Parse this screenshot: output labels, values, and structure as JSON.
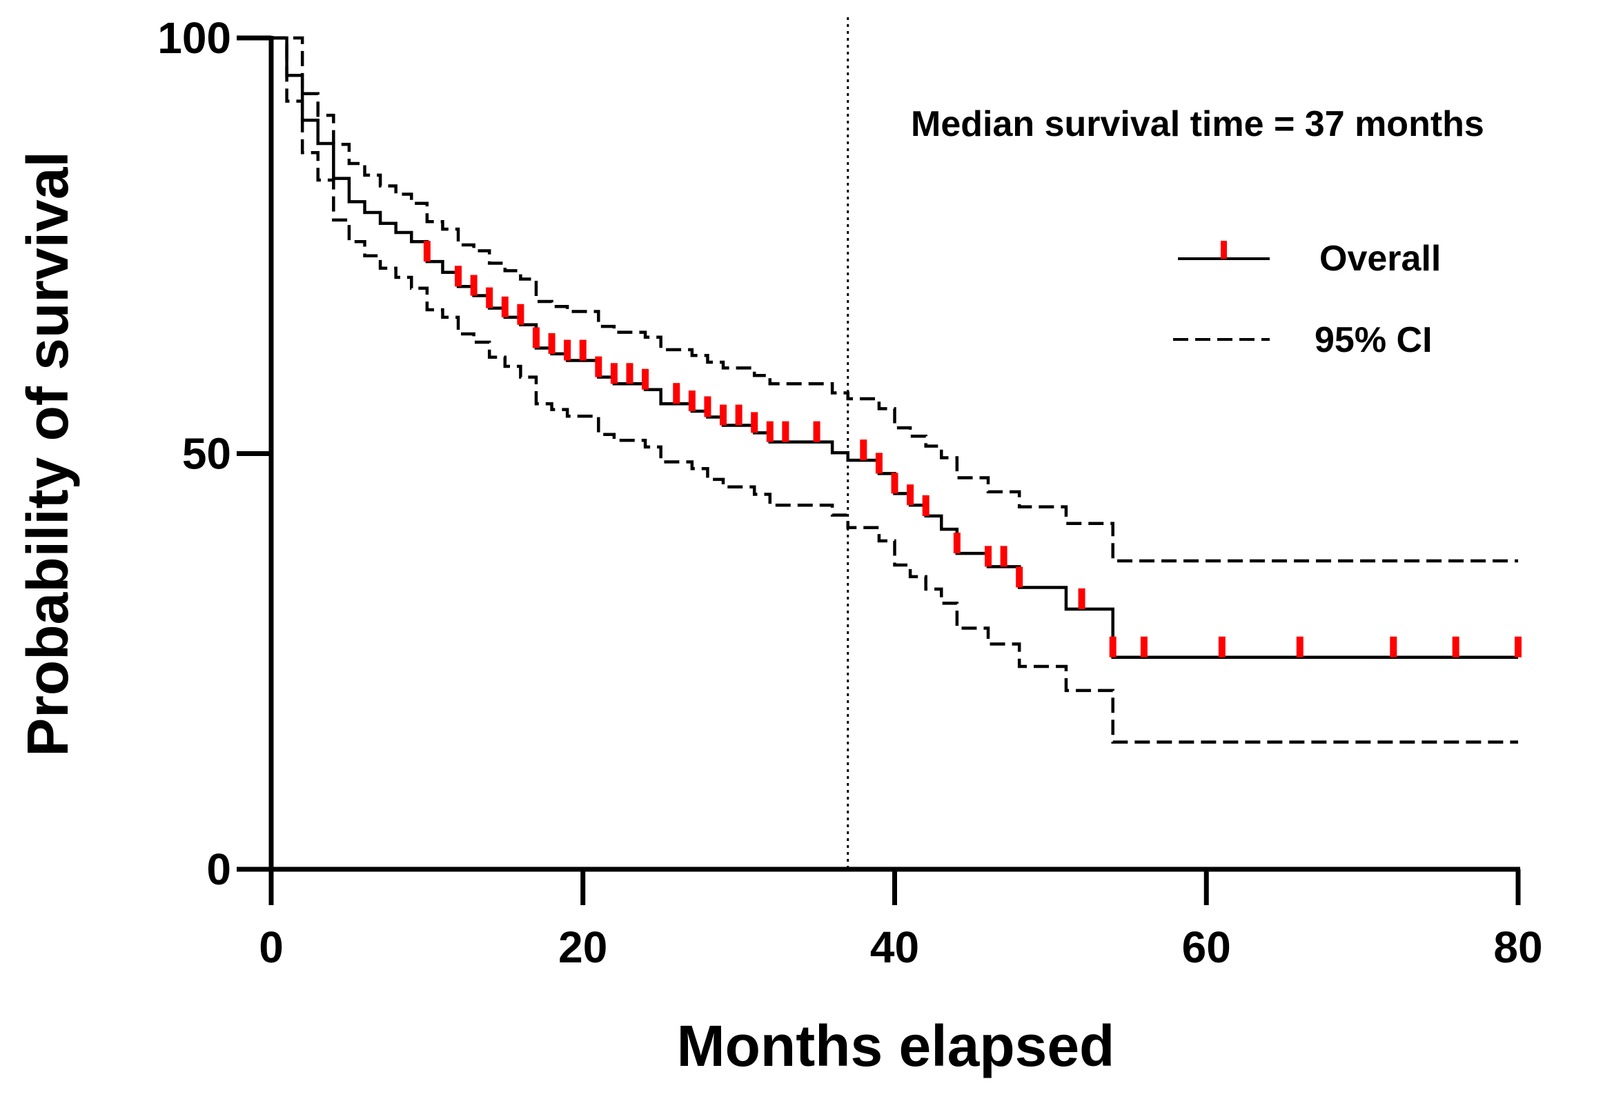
{
  "chart_data": {
    "type": "line",
    "subtype": "kaplan-meier",
    "title": "",
    "xlabel": "Months elapsed",
    "ylabel": "Probability of survival",
    "xlim": [
      0,
      80
    ],
    "ylim": [
      0,
      100
    ],
    "xticks": [
      "0",
      "20",
      "40",
      "60",
      "80"
    ],
    "yticks": [
      "0",
      "50",
      "100"
    ],
    "grid": false,
    "annotation": "Median survival time = 37 months",
    "median_line_x": 37,
    "legend": {
      "placement": "top-right",
      "entries": [
        "Overall",
        "95% CI"
      ]
    },
    "colors": {
      "overall": "#000000",
      "censor": "#ff0000",
      "ci": "#000000"
    },
    "series": [
      {
        "name": "Overall",
        "style": "solid",
        "steps": [
          [
            0,
            100
          ],
          [
            1,
            95.5
          ],
          [
            2,
            90.1
          ],
          [
            3,
            87.3
          ],
          [
            4,
            83.1
          ],
          [
            5,
            80.3
          ],
          [
            6,
            79.0
          ],
          [
            7,
            77.7
          ],
          [
            8,
            76.6
          ],
          [
            9,
            75.5
          ],
          [
            10,
            73.1
          ],
          [
            11,
            71.8
          ],
          [
            12,
            70.1
          ],
          [
            13,
            69.0
          ],
          [
            14,
            67.5
          ],
          [
            15,
            66.4
          ],
          [
            16,
            65.5
          ],
          [
            17,
            62.7
          ],
          [
            18,
            62.0
          ],
          [
            19,
            61.2
          ],
          [
            21,
            59.2
          ],
          [
            22,
            58.4
          ],
          [
            24,
            57.7
          ],
          [
            25,
            56.0
          ],
          [
            27,
            55.1
          ],
          [
            28,
            54.4
          ],
          [
            29,
            53.4
          ],
          [
            31,
            52.5
          ],
          [
            32,
            51.4
          ],
          [
            36,
            50.1
          ],
          [
            37,
            49.2
          ],
          [
            39,
            47.6
          ],
          [
            40,
            45.2
          ],
          [
            41,
            43.8
          ],
          [
            42,
            42.5
          ],
          [
            43,
            40.9
          ],
          [
            44,
            38.0
          ],
          [
            46,
            36.4
          ],
          [
            48,
            33.9
          ],
          [
            51,
            31.3
          ],
          [
            54,
            25.5
          ]
        ],
        "end": 80,
        "censored": [
          10,
          12,
          13,
          14,
          15,
          16,
          17,
          18,
          19,
          20,
          21,
          22,
          23,
          24,
          26,
          27,
          28,
          29,
          30,
          31,
          32,
          33,
          35,
          38,
          39,
          40,
          41,
          42,
          44,
          46,
          47,
          48,
          52,
          54,
          56,
          61,
          66,
          72,
          76,
          80
        ]
      },
      {
        "name": "95% CI upper",
        "style": "dashed",
        "steps": [
          [
            0,
            100
          ],
          [
            2,
            93.3
          ],
          [
            3,
            90.7
          ],
          [
            4,
            87.2
          ],
          [
            5,
            84.9
          ],
          [
            6,
            83.5
          ],
          [
            7,
            82.2
          ],
          [
            8,
            81.2
          ],
          [
            9,
            80.1
          ],
          [
            10,
            77.9
          ],
          [
            11,
            77.0
          ],
          [
            12,
            75.1
          ],
          [
            13,
            74.4
          ],
          [
            14,
            72.9
          ],
          [
            15,
            72.0
          ],
          [
            16,
            71.0
          ],
          [
            17,
            68.3
          ],
          [
            18,
            67.7
          ],
          [
            19,
            67.1
          ],
          [
            21,
            65.3
          ],
          [
            22,
            64.6
          ],
          [
            24,
            64.0
          ],
          [
            25,
            62.5
          ],
          [
            27,
            61.8
          ],
          [
            28,
            61.0
          ],
          [
            29,
            60.3
          ],
          [
            31,
            59.4
          ],
          [
            32,
            58.4
          ],
          [
            36,
            57.3
          ],
          [
            37,
            56.6
          ],
          [
            39,
            55.4
          ],
          [
            40,
            53.1
          ],
          [
            41,
            52.1
          ],
          [
            42,
            50.9
          ],
          [
            43,
            49.5
          ],
          [
            44,
            47.1
          ],
          [
            46,
            45.4
          ],
          [
            48,
            43.6
          ],
          [
            51,
            41.6
          ],
          [
            54,
            37.1
          ]
        ],
        "end": 80
      },
      {
        "name": "95% CI lower",
        "style": "dashed",
        "steps": [
          [
            0,
            100
          ],
          [
            1,
            92.4
          ],
          [
            2,
            86.2
          ],
          [
            3,
            82.9
          ],
          [
            4,
            78.1
          ],
          [
            5,
            75.5
          ],
          [
            6,
            73.8
          ],
          [
            7,
            72.3
          ],
          [
            8,
            71.2
          ],
          [
            9,
            69.9
          ],
          [
            10,
            67.3
          ],
          [
            11,
            66.4
          ],
          [
            12,
            64.4
          ],
          [
            13,
            63.4
          ],
          [
            14,
            61.6
          ],
          [
            15,
            60.5
          ],
          [
            16,
            59.2
          ],
          [
            17,
            56.0
          ],
          [
            18,
            55.3
          ],
          [
            19,
            54.5
          ],
          [
            21,
            52.3
          ],
          [
            22,
            51.6
          ],
          [
            24,
            50.8
          ],
          [
            25,
            49.0
          ],
          [
            27,
            48.2
          ],
          [
            28,
            46.9
          ],
          [
            29,
            46.0
          ],
          [
            31,
            45.1
          ],
          [
            32,
            43.8
          ],
          [
            36,
            42.6
          ],
          [
            37,
            41.1
          ],
          [
            39,
            39.5
          ],
          [
            40,
            36.6
          ],
          [
            41,
            35.2
          ],
          [
            42,
            33.7
          ],
          [
            43,
            32.0
          ],
          [
            44,
            29.0
          ],
          [
            46,
            27.1
          ],
          [
            48,
            24.4
          ],
          [
            51,
            21.5
          ],
          [
            54,
            15.3
          ]
        ],
        "end": 80
      }
    ]
  }
}
